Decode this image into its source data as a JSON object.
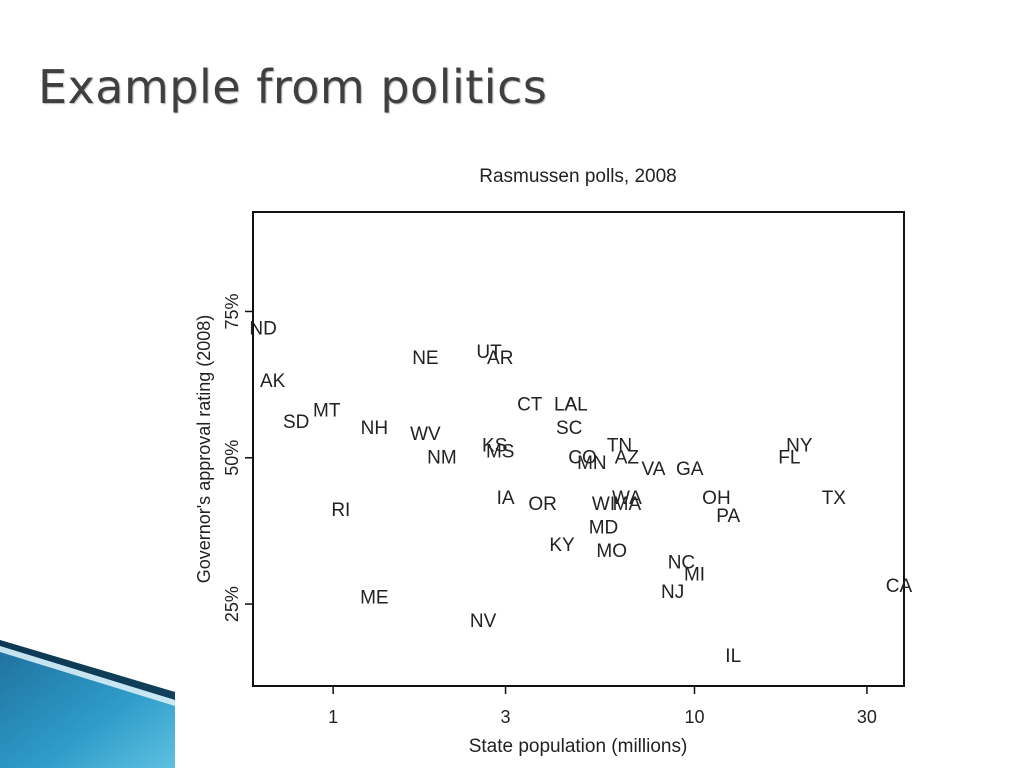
{
  "slide": {
    "title": "Example from politics"
  },
  "chart_data": {
    "type": "scatter",
    "title": "Rasmussen polls, 2008",
    "xlabel": "State population (millions)",
    "ylabel": "Governor's approval rating (2008)",
    "x_scale": "log",
    "xlim": [
      0.6,
      38
    ],
    "ylim": [
      11,
      92
    ],
    "x_ticks": [
      1,
      3,
      10,
      30
    ],
    "x_tick_labels": [
      "1",
      "3",
      "10",
      "30"
    ],
    "y_ticks": [
      25,
      50,
      75
    ],
    "y_tick_labels": [
      "25%",
      "50%",
      "75%"
    ],
    "grid": false,
    "marker": "state-abbreviation",
    "points": [
      {
        "label": "ND",
        "x": 0.64,
        "y": 72
      },
      {
        "label": "AK",
        "x": 0.68,
        "y": 63
      },
      {
        "label": "SD",
        "x": 0.79,
        "y": 56
      },
      {
        "label": "MT",
        "x": 0.96,
        "y": 58
      },
      {
        "label": "NH",
        "x": 1.3,
        "y": 55
      },
      {
        "label": "WV",
        "x": 1.8,
        "y": 54
      },
      {
        "label": "RI",
        "x": 1.05,
        "y": 41
      },
      {
        "label": "ME",
        "x": 1.3,
        "y": 26
      },
      {
        "label": "NE",
        "x": 1.8,
        "y": 67
      },
      {
        "label": "NM",
        "x": 2.0,
        "y": 50
      },
      {
        "label": "NV",
        "x": 2.6,
        "y": 22
      },
      {
        "label": "UT",
        "x": 2.7,
        "y": 68
      },
      {
        "label": "AR",
        "x": 2.9,
        "y": 67
      },
      {
        "label": "KS",
        "x": 2.8,
        "y": 52
      },
      {
        "label": "MS",
        "x": 2.9,
        "y": 51
      },
      {
        "label": "IA",
        "x": 3.0,
        "y": 43
      },
      {
        "label": "CT",
        "x": 3.5,
        "y": 59
      },
      {
        "label": "LA",
        "x": 4.4,
        "y": 59
      },
      {
        "label": "AL",
        "x": 4.7,
        "y": 59
      },
      {
        "label": "SC",
        "x": 4.5,
        "y": 55
      },
      {
        "label": "OR",
        "x": 3.8,
        "y": 42
      },
      {
        "label": "KY",
        "x": 4.3,
        "y": 35
      },
      {
        "label": "CO",
        "x": 4.9,
        "y": 50
      },
      {
        "label": "MN",
        "x": 5.2,
        "y": 49
      },
      {
        "label": "TN",
        "x": 6.2,
        "y": 52
      },
      {
        "label": "AZ",
        "x": 6.5,
        "y": 50
      },
      {
        "label": "VA",
        "x": 7.7,
        "y": 48
      },
      {
        "label": "GA",
        "x": 9.7,
        "y": 48
      },
      {
        "label": "WI",
        "x": 5.6,
        "y": 42
      },
      {
        "label": "WA",
        "x": 6.5,
        "y": 43
      },
      {
        "label": "MA",
        "x": 6.5,
        "y": 42
      },
      {
        "label": "MD",
        "x": 5.6,
        "y": 38
      },
      {
        "label": "MO",
        "x": 5.9,
        "y": 34
      },
      {
        "label": "NC",
        "x": 9.2,
        "y": 32
      },
      {
        "label": "MI",
        "x": 10.0,
        "y": 30
      },
      {
        "label": "NJ",
        "x": 8.7,
        "y": 27
      },
      {
        "label": "OH",
        "x": 11.5,
        "y": 43
      },
      {
        "label": "PA",
        "x": 12.4,
        "y": 40
      },
      {
        "label": "IL",
        "x": 12.8,
        "y": 16
      },
      {
        "label": "NY",
        "x": 19.5,
        "y": 52
      },
      {
        "label": "FL",
        "x": 18.3,
        "y": 50
      },
      {
        "label": "TX",
        "x": 24.3,
        "y": 43
      },
      {
        "label": "CA",
        "x": 36.8,
        "y": 28
      }
    ]
  }
}
